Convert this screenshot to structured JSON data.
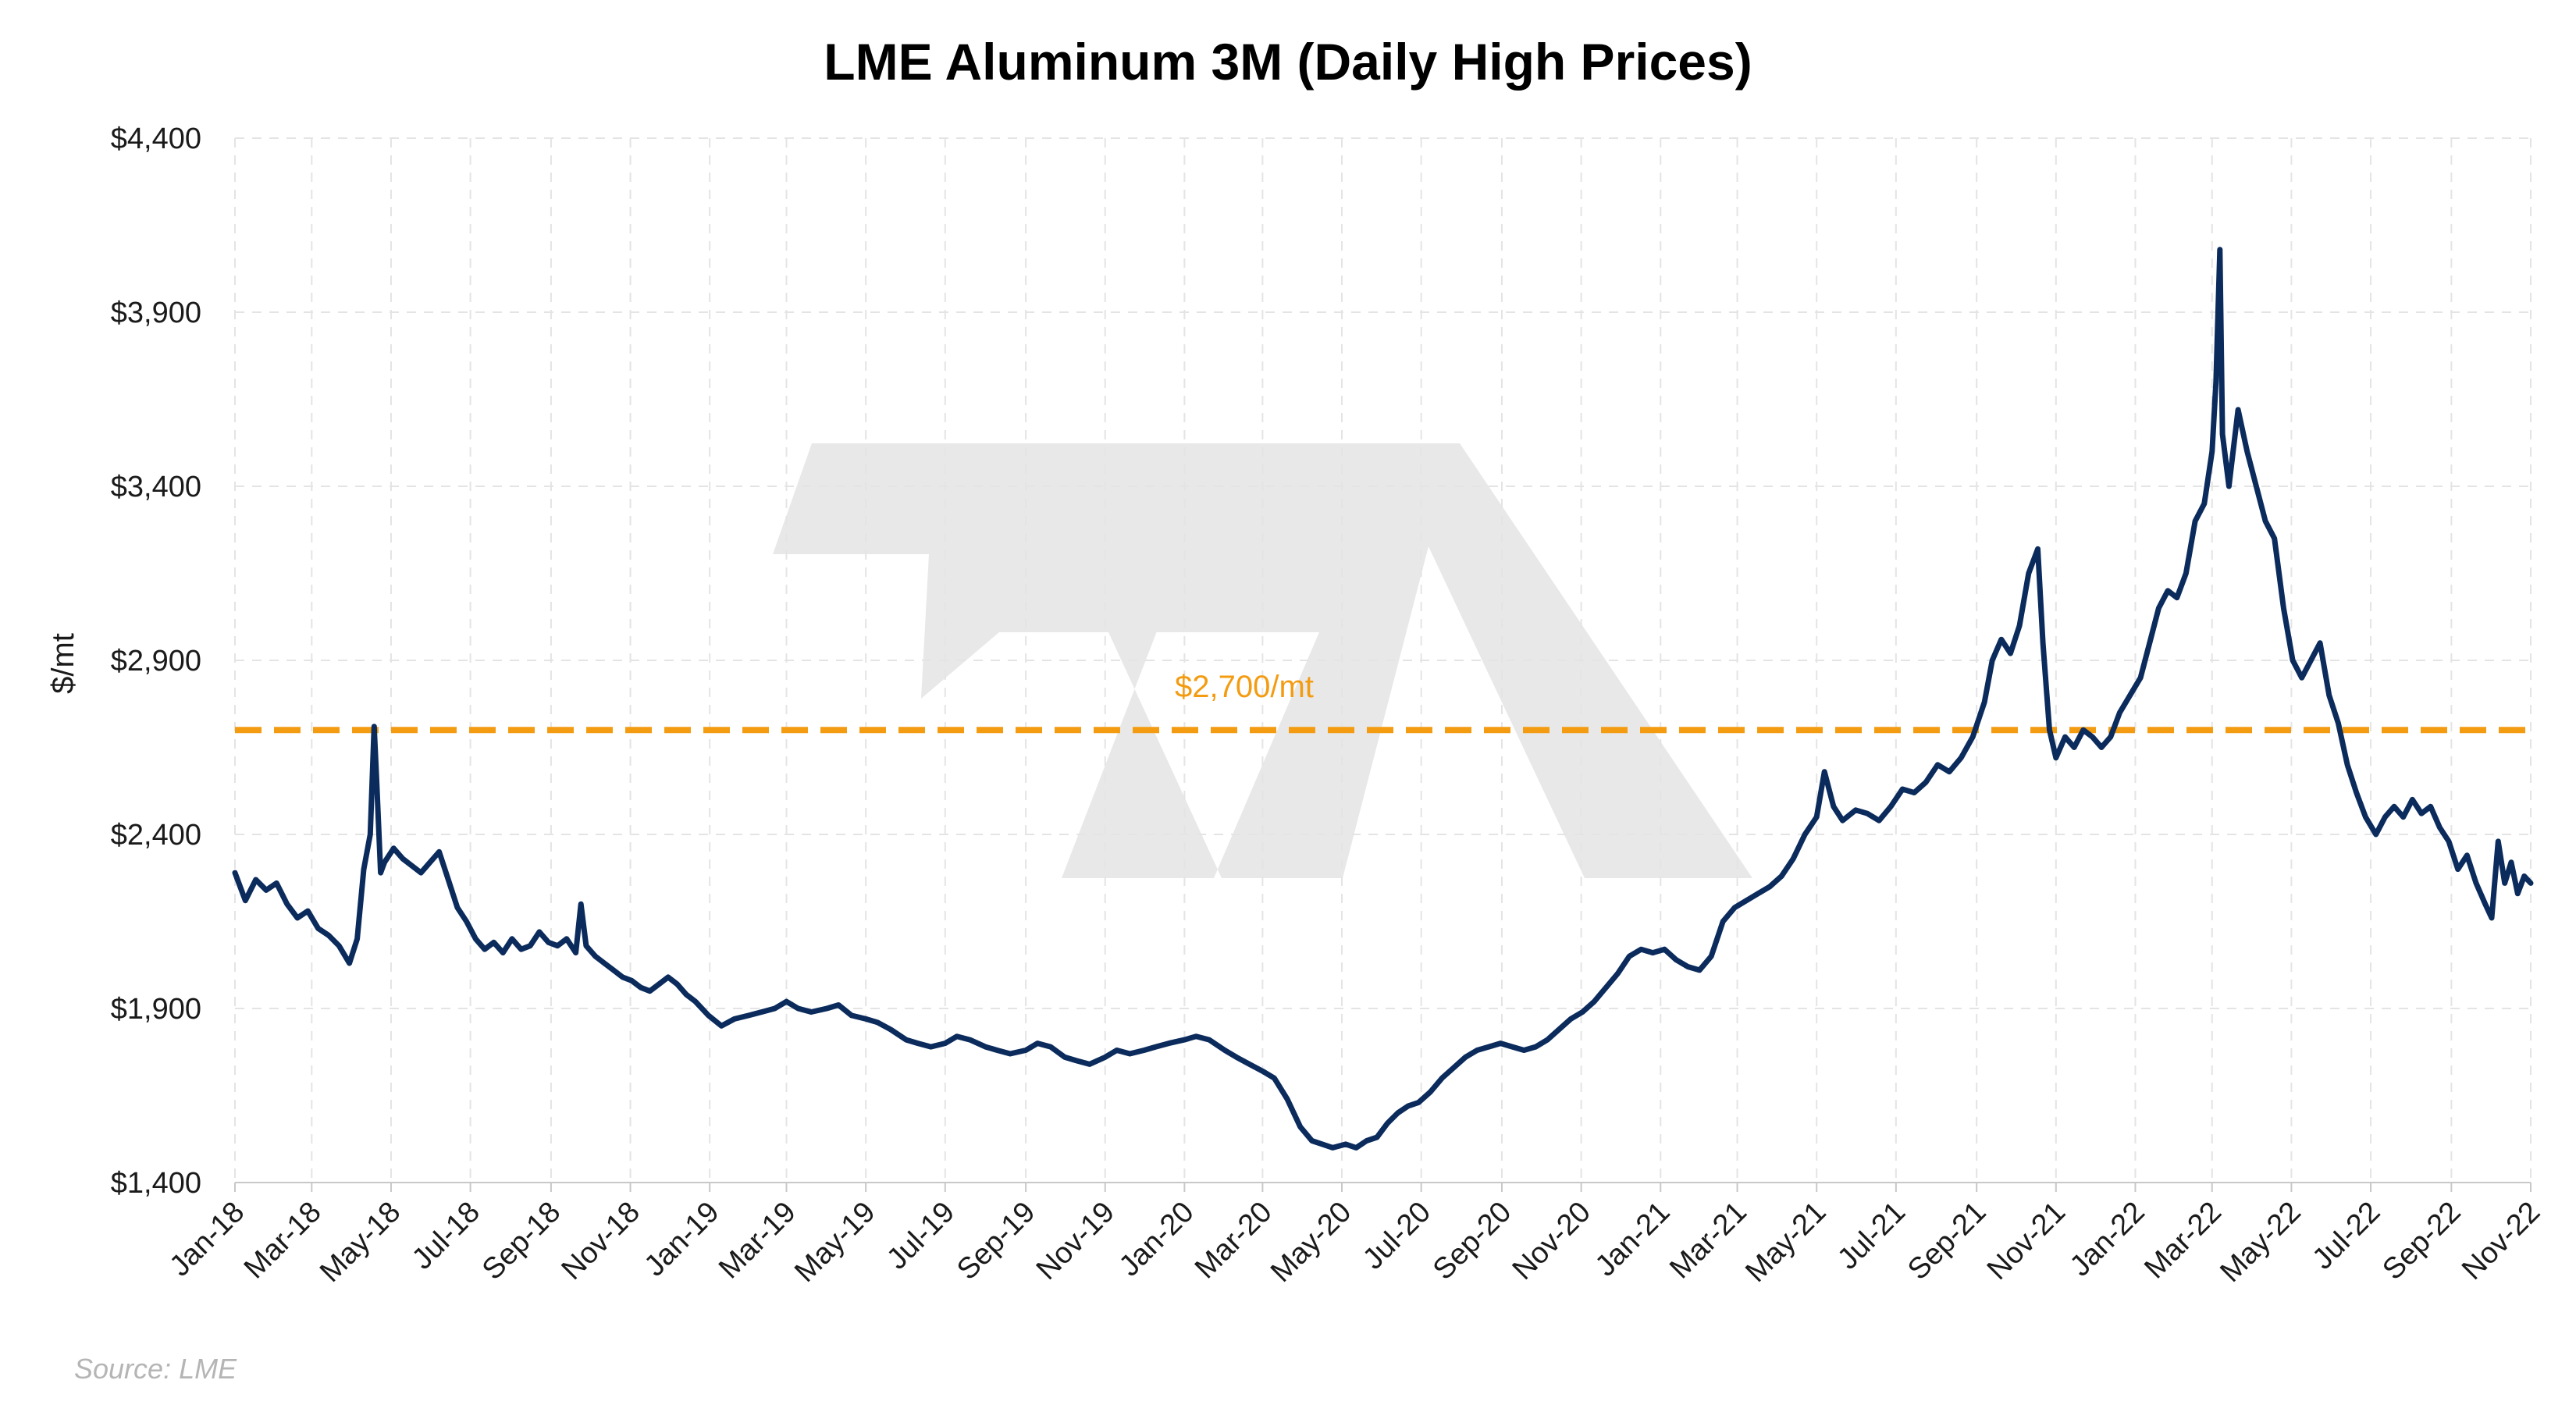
{
  "chart_data": {
    "type": "line",
    "title": "LME Aluminum 3M (Daily High Prices)",
    "ylabel": "$/mt",
    "xlabel": "",
    "source": "Source: LME",
    "ylim": [
      1400,
      4400
    ],
    "yticks": [
      1400,
      1900,
      2400,
      2900,
      3400,
      3900,
      4400
    ],
    "ytick_labels": [
      "$1,400",
      "$1,900",
      "$2,400",
      "$2,900",
      "$3,400",
      "$3,900",
      "$4,400"
    ],
    "x_range": [
      "2018-01",
      "2022-11"
    ],
    "xtick_labels": [
      "Jan-18",
      "Mar-18",
      "May-18",
      "Jul-18",
      "Sep-18",
      "Nov-18",
      "Jan-19",
      "Mar-19",
      "May-19",
      "Jul-19",
      "Sep-19",
      "Nov-19",
      "Jan-20",
      "Mar-20",
      "May-20",
      "Jul-20",
      "Sep-20",
      "Nov-20",
      "Jan-21",
      "Mar-21",
      "May-21",
      "Jul-21",
      "Sep-21",
      "Nov-21",
      "Jan-22",
      "Mar-22",
      "May-22",
      "Jul-22",
      "Sep-22",
      "Nov-22"
    ],
    "grid": true,
    "reference_line": {
      "value": 2700,
      "label": "$2,700/mt",
      "color": "#f39c12",
      "style": "dashed"
    },
    "series": [
      {
        "color": "#0b2b5c",
        "points": [
          [
            "2018-01-01",
            2290
          ],
          [
            "2018-01-09",
            2210
          ],
          [
            "2018-01-17",
            2270
          ],
          [
            "2018-01-25",
            2240
          ],
          [
            "2018-02-02",
            2260
          ],
          [
            "2018-02-10",
            2200
          ],
          [
            "2018-02-18",
            2160
          ],
          [
            "2018-02-26",
            2180
          ],
          [
            "2018-03-06",
            2130
          ],
          [
            "2018-03-14",
            2110
          ],
          [
            "2018-03-22",
            2080
          ],
          [
            "2018-03-30",
            2030
          ],
          [
            "2018-04-05",
            2100
          ],
          [
            "2018-04-10",
            2300
          ],
          [
            "2018-04-15",
            2400
          ],
          [
            "2018-04-18",
            2710
          ],
          [
            "2018-04-20",
            2550
          ],
          [
            "2018-04-23",
            2290
          ],
          [
            "2018-04-26",
            2320
          ],
          [
            "2018-05-03",
            2360
          ],
          [
            "2018-05-10",
            2330
          ],
          [
            "2018-05-17",
            2310
          ],
          [
            "2018-05-24",
            2290
          ],
          [
            "2018-05-31",
            2320
          ],
          [
            "2018-06-07",
            2350
          ],
          [
            "2018-06-14",
            2270
          ],
          [
            "2018-06-21",
            2190
          ],
          [
            "2018-06-28",
            2150
          ],
          [
            "2018-07-05",
            2100
          ],
          [
            "2018-07-12",
            2070
          ],
          [
            "2018-07-19",
            2090
          ],
          [
            "2018-07-26",
            2060
          ],
          [
            "2018-08-02",
            2100
          ],
          [
            "2018-08-09",
            2070
          ],
          [
            "2018-08-16",
            2080
          ],
          [
            "2018-08-23",
            2120
          ],
          [
            "2018-08-30",
            2090
          ],
          [
            "2018-09-06",
            2080
          ],
          [
            "2018-09-13",
            2100
          ],
          [
            "2018-09-20",
            2060
          ],
          [
            "2018-09-24",
            2200
          ],
          [
            "2018-09-28",
            2080
          ],
          [
            "2018-10-05",
            2050
          ],
          [
            "2018-10-12",
            2030
          ],
          [
            "2018-10-19",
            2010
          ],
          [
            "2018-10-26",
            1990
          ],
          [
            "2018-11-02",
            1980
          ],
          [
            "2018-11-09",
            1960
          ],
          [
            "2018-11-16",
            1950
          ],
          [
            "2018-11-23",
            1970
          ],
          [
            "2018-11-30",
            1990
          ],
          [
            "2018-12-07",
            1970
          ],
          [
            "2018-12-14",
            1940
          ],
          [
            "2018-12-21",
            1920
          ],
          [
            "2018-12-31",
            1880
          ],
          [
            "2019-01-10",
            1850
          ],
          [
            "2019-01-20",
            1870
          ],
          [
            "2019-01-31",
            1880
          ],
          [
            "2019-02-10",
            1890
          ],
          [
            "2019-02-20",
            1900
          ],
          [
            "2019-03-01",
            1920
          ],
          [
            "2019-03-10",
            1900
          ],
          [
            "2019-03-20",
            1890
          ],
          [
            "2019-04-01",
            1900
          ],
          [
            "2019-04-10",
            1910
          ],
          [
            "2019-04-20",
            1880
          ],
          [
            "2019-05-01",
            1870
          ],
          [
            "2019-05-10",
            1860
          ],
          [
            "2019-05-20",
            1840
          ],
          [
            "2019-06-01",
            1810
          ],
          [
            "2019-06-10",
            1800
          ],
          [
            "2019-06-20",
            1790
          ],
          [
            "2019-07-01",
            1800
          ],
          [
            "2019-07-10",
            1820
          ],
          [
            "2019-07-20",
            1810
          ],
          [
            "2019-08-01",
            1790
          ],
          [
            "2019-08-10",
            1780
          ],
          [
            "2019-08-20",
            1770
          ],
          [
            "2019-09-01",
            1780
          ],
          [
            "2019-09-10",
            1800
          ],
          [
            "2019-09-20",
            1790
          ],
          [
            "2019-10-01",
            1760
          ],
          [
            "2019-10-10",
            1750
          ],
          [
            "2019-10-20",
            1740
          ],
          [
            "2019-11-01",
            1760
          ],
          [
            "2019-11-10",
            1780
          ],
          [
            "2019-11-20",
            1770
          ],
          [
            "2019-12-01",
            1780
          ],
          [
            "2019-12-10",
            1790
          ],
          [
            "2019-12-20",
            1800
          ],
          [
            "2020-01-01",
            1810
          ],
          [
            "2020-01-10",
            1820
          ],
          [
            "2020-01-20",
            1810
          ],
          [
            "2020-02-01",
            1780
          ],
          [
            "2020-02-10",
            1760
          ],
          [
            "2020-02-20",
            1740
          ],
          [
            "2020-03-01",
            1720
          ],
          [
            "2020-03-10",
            1700
          ],
          [
            "2020-03-20",
            1640
          ],
          [
            "2020-03-30",
            1560
          ],
          [
            "2020-04-08",
            1520
          ],
          [
            "2020-04-16",
            1510
          ],
          [
            "2020-04-24",
            1500
          ],
          [
            "2020-05-04",
            1510
          ],
          [
            "2020-05-12",
            1500
          ],
          [
            "2020-05-20",
            1520
          ],
          [
            "2020-05-28",
            1530
          ],
          [
            "2020-06-05",
            1570
          ],
          [
            "2020-06-13",
            1600
          ],
          [
            "2020-06-21",
            1620
          ],
          [
            "2020-06-29",
            1630
          ],
          [
            "2020-07-08",
            1660
          ],
          [
            "2020-07-17",
            1700
          ],
          [
            "2020-07-26",
            1730
          ],
          [
            "2020-08-04",
            1760
          ],
          [
            "2020-08-13",
            1780
          ],
          [
            "2020-08-22",
            1790
          ],
          [
            "2020-08-31",
            1800
          ],
          [
            "2020-09-09",
            1790
          ],
          [
            "2020-09-18",
            1780
          ],
          [
            "2020-09-27",
            1790
          ],
          [
            "2020-10-06",
            1810
          ],
          [
            "2020-10-15",
            1840
          ],
          [
            "2020-10-24",
            1870
          ],
          [
            "2020-11-02",
            1890
          ],
          [
            "2020-11-11",
            1920
          ],
          [
            "2020-11-20",
            1960
          ],
          [
            "2020-11-29",
            2000
          ],
          [
            "2020-12-08",
            2050
          ],
          [
            "2020-12-17",
            2070
          ],
          [
            "2020-12-26",
            2060
          ],
          [
            "2021-01-04",
            2070
          ],
          [
            "2021-01-13",
            2040
          ],
          [
            "2021-01-22",
            2020
          ],
          [
            "2021-01-31",
            2010
          ],
          [
            "2021-02-09",
            2050
          ],
          [
            "2021-02-18",
            2150
          ],
          [
            "2021-02-27",
            2190
          ],
          [
            "2021-03-08",
            2210
          ],
          [
            "2021-03-17",
            2230
          ],
          [
            "2021-03-26",
            2250
          ],
          [
            "2021-04-04",
            2280
          ],
          [
            "2021-04-13",
            2330
          ],
          [
            "2021-04-22",
            2400
          ],
          [
            "2021-05-01",
            2450
          ],
          [
            "2021-05-07",
            2580
          ],
          [
            "2021-05-14",
            2480
          ],
          [
            "2021-05-21",
            2440
          ],
          [
            "2021-05-31",
            2470
          ],
          [
            "2021-06-09",
            2460
          ],
          [
            "2021-06-18",
            2440
          ],
          [
            "2021-06-27",
            2480
          ],
          [
            "2021-07-06",
            2530
          ],
          [
            "2021-07-15",
            2520
          ],
          [
            "2021-07-24",
            2550
          ],
          [
            "2021-08-02",
            2600
          ],
          [
            "2021-08-11",
            2580
          ],
          [
            "2021-08-20",
            2620
          ],
          [
            "2021-08-29",
            2680
          ],
          [
            "2021-09-07",
            2780
          ],
          [
            "2021-09-13",
            2900
          ],
          [
            "2021-09-20",
            2960
          ],
          [
            "2021-09-27",
            2920
          ],
          [
            "2021-10-04",
            3000
          ],
          [
            "2021-10-11",
            3150
          ],
          [
            "2021-10-18",
            3220
          ],
          [
            "2021-10-22",
            2950
          ],
          [
            "2021-10-27",
            2700
          ],
          [
            "2021-11-01",
            2620
          ],
          [
            "2021-11-08",
            2680
          ],
          [
            "2021-11-15",
            2650
          ],
          [
            "2021-11-22",
            2700
          ],
          [
            "2021-11-29",
            2680
          ],
          [
            "2021-12-06",
            2650
          ],
          [
            "2021-12-13",
            2680
          ],
          [
            "2021-12-20",
            2750
          ],
          [
            "2021-12-28",
            2800
          ],
          [
            "2022-01-05",
            2850
          ],
          [
            "2022-01-12",
            2950
          ],
          [
            "2022-01-19",
            3050
          ],
          [
            "2022-01-26",
            3100
          ],
          [
            "2022-02-02",
            3080
          ],
          [
            "2022-02-09",
            3150
          ],
          [
            "2022-02-16",
            3300
          ],
          [
            "2022-02-23",
            3350
          ],
          [
            "2022-03-01",
            3500
          ],
          [
            "2022-03-04",
            3700
          ],
          [
            "2022-03-07",
            4080
          ],
          [
            "2022-03-09",
            3550
          ],
          [
            "2022-03-14",
            3400
          ],
          [
            "2022-03-21",
            3620
          ],
          [
            "2022-03-28",
            3500
          ],
          [
            "2022-04-04",
            3400
          ],
          [
            "2022-04-11",
            3300
          ],
          [
            "2022-04-18",
            3250
          ],
          [
            "2022-04-25",
            3050
          ],
          [
            "2022-05-02",
            2900
          ],
          [
            "2022-05-09",
            2850
          ],
          [
            "2022-05-16",
            2900
          ],
          [
            "2022-05-23",
            2950
          ],
          [
            "2022-05-30",
            2800
          ],
          [
            "2022-06-06",
            2720
          ],
          [
            "2022-06-13",
            2600
          ],
          [
            "2022-06-20",
            2520
          ],
          [
            "2022-06-27",
            2450
          ],
          [
            "2022-07-05",
            2400
          ],
          [
            "2022-07-12",
            2450
          ],
          [
            "2022-07-19",
            2480
          ],
          [
            "2022-07-26",
            2450
          ],
          [
            "2022-08-02",
            2500
          ],
          [
            "2022-08-09",
            2460
          ],
          [
            "2022-08-16",
            2480
          ],
          [
            "2022-08-23",
            2420
          ],
          [
            "2022-08-30",
            2380
          ],
          [
            "2022-09-06",
            2300
          ],
          [
            "2022-09-13",
            2340
          ],
          [
            "2022-09-20",
            2260
          ],
          [
            "2022-09-27",
            2200
          ],
          [
            "2022-10-02",
            2160
          ],
          [
            "2022-10-07",
            2380
          ],
          [
            "2022-10-12",
            2260
          ],
          [
            "2022-10-17",
            2320
          ],
          [
            "2022-10-22",
            2230
          ],
          [
            "2022-10-27",
            2280
          ],
          [
            "2022-11-01",
            2260
          ]
        ]
      }
    ]
  }
}
